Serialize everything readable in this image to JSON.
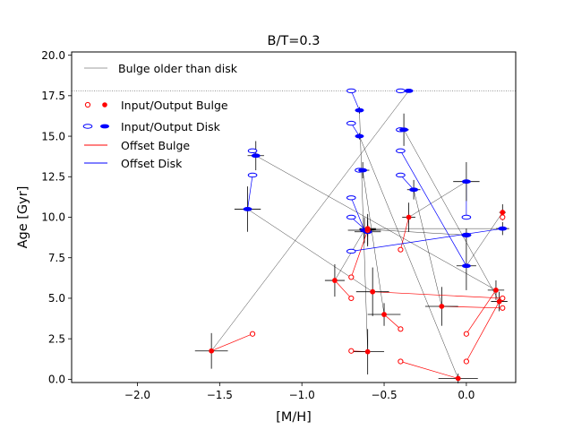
{
  "chart_data": {
    "type": "scatter",
    "title": "B/T=0.3",
    "xlabel": "[M/H]",
    "ylabel": "Age [Gyr]",
    "xlim": [
      -2.4,
      0.3
    ],
    "ylim": [
      -0.2,
      20.2
    ],
    "xticks": [
      -2.0,
      -1.5,
      -1.0,
      -0.5,
      0.0
    ],
    "xtick_labels": [
      "−2.0",
      "−1.5",
      "−1.0",
      "−0.5",
      "0.0"
    ],
    "yticks": [
      0.0,
      2.5,
      5.0,
      7.5,
      10.0,
      12.5,
      15.0,
      17.5,
      20.0
    ],
    "ytick_labels": [
      "0.0",
      "2.5",
      "5.0",
      "7.5",
      "10.0",
      "12.5",
      "15.0",
      "17.5",
      "20.0"
    ],
    "reference_line": {
      "y": 17.8
    },
    "colors": {
      "bulge": "#ff0000",
      "disk": "#0000ff",
      "link": "#000000",
      "reference": "#b0b0b0"
    },
    "legend": {
      "position": "upper-left",
      "entries": [
        {
          "label": "Bulge older than disk",
          "kind": "gray-line"
        },
        {
          "label": "Input/Output Bulge",
          "kind": "bulge-markers"
        },
        {
          "label": "Input/Output Disk",
          "kind": "disk-markers"
        },
        {
          "label": "Offset Bulge",
          "kind": "red-line"
        },
        {
          "label": "Offset Disk",
          "kind": "blue-line"
        }
      ]
    },
    "galaxies": [
      {
        "bulge_in": [
          -1.3,
          2.8
        ],
        "bulge_out": [
          -1.55,
          1.75
        ],
        "bulge_err": [
          0.1,
          1.1
        ],
        "disk_in": [
          -0.4,
          17.8
        ],
        "disk_out": [
          -0.35,
          17.8
        ],
        "disk_err": [
          0.0,
          0.0
        ]
      },
      {
        "bulge_in": [
          -0.7,
          1.75
        ],
        "bulge_out": [
          -0.6,
          1.7
        ],
        "bulge_err": [
          0.1,
          1.4
        ],
        "disk_in": [
          -0.7,
          17.8
        ],
        "disk_out": [
          -0.65,
          16.6
        ],
        "disk_err": [
          0.02,
          0.2
        ]
      },
      {
        "bulge_in": [
          -0.4,
          1.1
        ],
        "bulge_out": [
          -0.05,
          0.05
        ],
        "bulge_err": [
          0.12,
          0.3
        ],
        "disk_in": [
          -0.7,
          15.8
        ],
        "disk_out": [
          -0.65,
          15.0
        ],
        "disk_err": [
          0.02,
          0.2
        ]
      },
      {
        "bulge_in": [
          0.0,
          1.1
        ],
        "bulge_out": [
          0.2,
          4.8
        ],
        "bulge_err": [
          0.05,
          0.6
        ],
        "disk_in": [
          -0.4,
          15.4
        ],
        "disk_out": [
          -0.38,
          15.4
        ],
        "disk_err": [
          0.03,
          1.0
        ]
      },
      {
        "bulge_in": [
          0.0,
          2.8
        ],
        "bulge_out": [
          0.18,
          5.5
        ],
        "bulge_err": [
          0.05,
          0.6
        ],
        "disk_in": [
          -1.3,
          14.1
        ],
        "disk_out": [
          -1.28,
          13.8
        ],
        "disk_err": [
          0.05,
          0.9
        ]
      },
      {
        "bulge_in": [
          -0.4,
          3.1
        ],
        "bulge_out": [
          -0.5,
          4.0
        ],
        "bulge_err": [
          0.1,
          0.7
        ],
        "disk_in": [
          -0.65,
          12.9
        ],
        "disk_out": [
          -0.63,
          12.9
        ],
        "disk_err": [
          0.04,
          0.5
        ]
      },
      {
        "bulge_in": [
          0.22,
          4.4
        ],
        "bulge_out": [
          -0.15,
          4.5
        ],
        "bulge_err": [
          0.1,
          1.2
        ],
        "disk_in": [
          -0.4,
          12.6
        ],
        "disk_out": [
          -0.32,
          11.7
        ],
        "disk_err": [
          0.04,
          0.6
        ]
      },
      {
        "bulge_in": [
          0.22,
          5.0
        ],
        "bulge_out": [
          -0.57,
          5.4
        ],
        "bulge_err": [
          0.1,
          1.5
        ],
        "disk_in": [
          -1.3,
          12.6
        ],
        "disk_out": [
          -1.33,
          10.5
        ],
        "disk_err": [
          0.08,
          1.4
        ]
      },
      {
        "bulge_in": [
          -0.7,
          5.0
        ],
        "bulge_out": [
          -0.8,
          6.1
        ],
        "bulge_err": [
          0.06,
          1.0
        ],
        "disk_in": [
          -0.7,
          11.2
        ],
        "disk_out": [
          -0.62,
          9.2
        ],
        "disk_err": [
          0.1,
          0.8
        ]
      },
      {
        "bulge_in": [
          -0.7,
          6.3
        ],
        "bulge_out": [
          -0.6,
          9.2
        ],
        "bulge_err": [
          0.04,
          1.0
        ],
        "disk_in": [
          -0.7,
          10.0
        ],
        "disk_out": [
          -0.6,
          9.1
        ],
        "disk_err": [
          0.08,
          0.8
        ]
      },
      {
        "bulge_in": [
          -0.4,
          8.0
        ],
        "bulge_out": [
          -0.35,
          10.0
        ],
        "bulge_err": [
          0.04,
          0.9
        ],
        "disk_in": [
          0.0,
          10.0
        ],
        "disk_out": [
          0.0,
          12.2
        ],
        "disk_err": [
          0.08,
          1.2
        ]
      },
      {
        "bulge_in": [
          0.22,
          10.0
        ],
        "bulge_out": [
          0.22,
          10.3
        ],
        "bulge_err": [
          0.02,
          0.5
        ],
        "disk_in": [
          -0.4,
          14.1
        ],
        "disk_out": [
          0.0,
          7.0
        ],
        "disk_err": [
          0.06,
          1.5
        ]
      },
      {
        "bulge_in": [
          -0.6,
          9.2
        ],
        "bulge_out": [
          -0.6,
          9.3
        ],
        "bulge_err": [
          0.05,
          0.5
        ],
        "disk_in": [
          -0.7,
          7.9
        ],
        "disk_out": [
          0.22,
          9.3
        ],
        "disk_err": [
          0.04,
          0.4
        ]
      },
      {
        "bulge_in": [
          -0.6,
          9.2
        ],
        "bulge_out": [
          -0.6,
          9.25
        ],
        "bulge_err": [
          0.05,
          0.3
        ],
        "disk_in": [
          0.0,
          8.9
        ],
        "disk_out": [
          0.0,
          8.9
        ],
        "disk_err": [
          0.03,
          0.4
        ]
      }
    ]
  }
}
